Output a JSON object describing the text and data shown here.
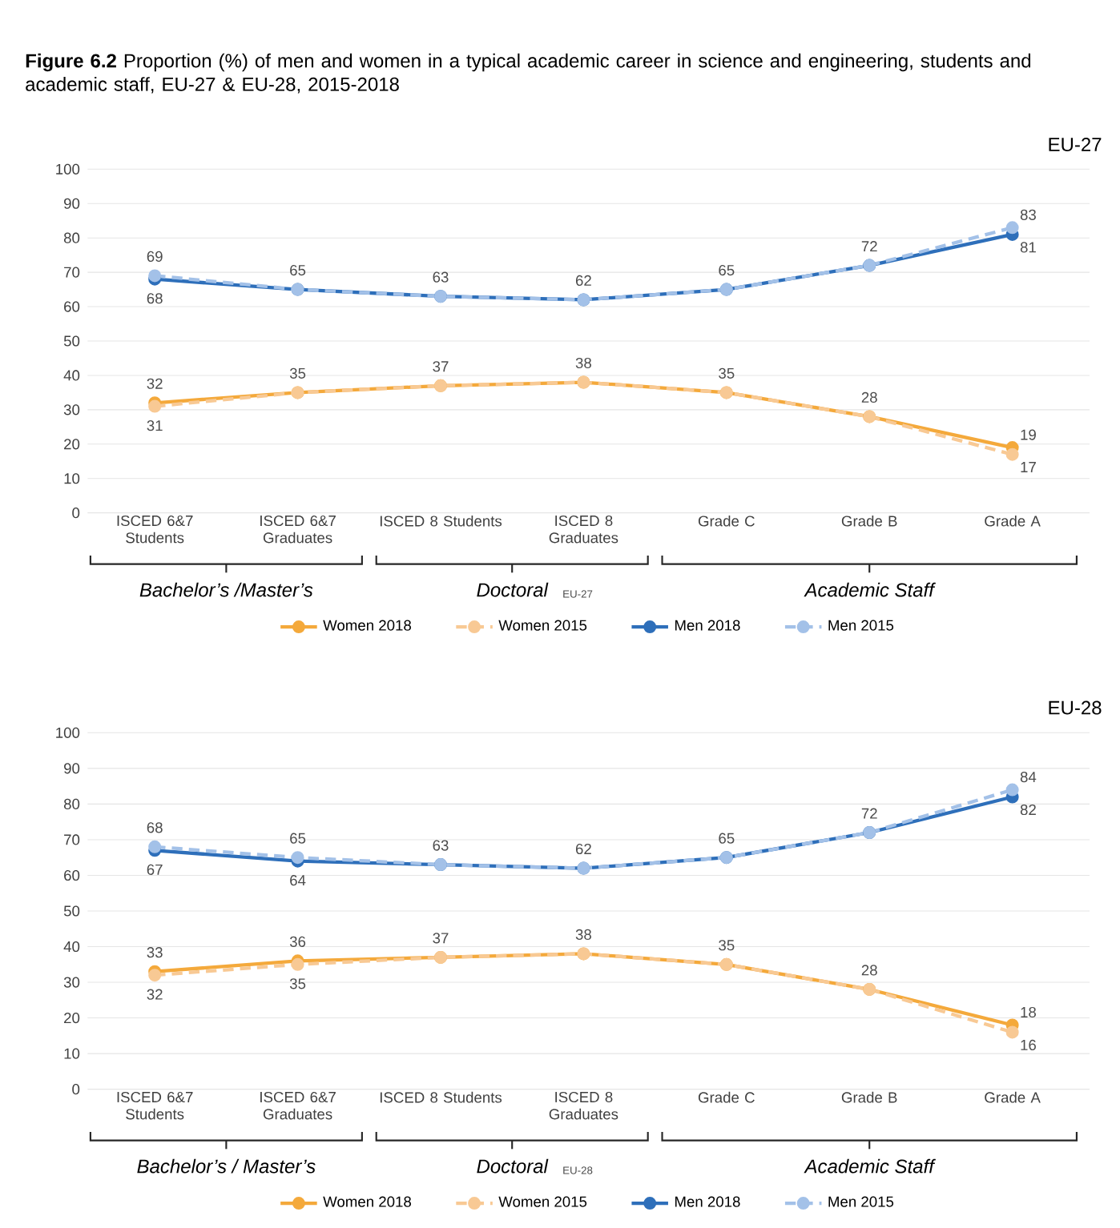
{
  "chart_data": [
    {
      "type": "line",
      "title": "**Figure 6.2** Proportion (%) of men and women in a typical academic career in science and engineering, students and academic staff, EU-27 & EU-28, 2015-2018",
      "subtitle": "EU-27",
      "categories": [
        "ISCED 6&7 Students",
        "ISCED 6&7 Graduates",
        "ISCED 8 Students",
        "ISCED 8 Graduates",
        "Grade C",
        "Grade B",
        "Grade A"
      ],
      "series": [
        {
          "name": "Women 2018",
          "color": "#f4a93b",
          "line_style": "solid",
          "values": [
            32,
            35,
            37,
            38,
            35,
            28,
            19
          ],
          "value_labels": [
            "32",
            "35",
            "37",
            "38",
            "35",
            "28",
            "19"
          ]
        },
        {
          "name": "Women 2015",
          "color": "#f8c994",
          "line_style": "dashed",
          "values": [
            31,
            35,
            37,
            38,
            35,
            28,
            17
          ],
          "value_labels": [
            "31",
            null,
            null,
            null,
            null,
            null,
            "17"
          ]
        },
        {
          "name": "Men 2018",
          "color": "#2e6fba",
          "line_style": "solid",
          "values": [
            68,
            65,
            63,
            62,
            65,
            72,
            81
          ],
          "value_labels": [
            "68",
            "65",
            "63",
            "62",
            "65",
            "72",
            "81"
          ]
        },
        {
          "name": "Men 2015",
          "color": "#a3c1e8",
          "line_style": "dashed",
          "values": [
            69,
            65,
            63,
            62,
            65,
            72,
            83
          ],
          "value_labels": [
            "69",
            null,
            null,
            null,
            null,
            null,
            "83"
          ]
        }
      ],
      "ylim": [
        0,
        100
      ],
      "yticks": [
        0,
        10,
        20,
        30,
        40,
        50,
        60,
        70,
        80,
        90,
        100
      ],
      "grid": "y",
      "legend": "bottom",
      "marker": "circle",
      "annotations": [
        "Bachelor’s /Master’s",
        "Doctoral",
        "EU-27",
        "Academic Staff"
      ]
    },
    {
      "type": "line",
      "subtitle": "EU-28",
      "categories": [
        "ISCED 6&7 Students",
        "ISCED 6&7 Graduates",
        "ISCED 8 Students",
        "ISCED 8 Graduates",
        "Grade C",
        "Grade B",
        "Grade A"
      ],
      "series": [
        {
          "name": "Women 2018",
          "color": "#f4a93b",
          "line_style": "solid",
          "values": [
            33,
            36,
            37,
            38,
            35,
            28,
            18
          ],
          "value_labels": [
            "33",
            "36",
            "37",
            "38",
            "35",
            "28",
            "18"
          ]
        },
        {
          "name": "Women 2015",
          "color": "#f8c994",
          "line_style": "dashed",
          "values": [
            32,
            35,
            37,
            38,
            35,
            28,
            16
          ],
          "value_labels": [
            "32",
            "35",
            null,
            null,
            null,
            null,
            "16"
          ]
        },
        {
          "name": "Men 2018",
          "color": "#2e6fba",
          "line_style": "solid",
          "values": [
            67,
            64,
            63,
            62,
            65,
            72,
            82
          ],
          "value_labels": [
            "67",
            "64",
            "63",
            "62",
            "65",
            "72",
            "82"
          ]
        },
        {
          "name": "Men 2015",
          "color": "#a3c1e8",
          "line_style": "dashed",
          "values": [
            68,
            65,
            63,
            62,
            65,
            72,
            84
          ],
          "value_labels": [
            "68",
            "65",
            null,
            null,
            null,
            null,
            "84"
          ]
        }
      ],
      "ylim": [
        0,
        100
      ],
      "yticks": [
        0,
        10,
        20,
        30,
        40,
        50,
        60,
        70,
        80,
        90,
        100
      ],
      "grid": "y",
      "legend": "bottom",
      "marker": "circle",
      "annotations": [
        "Bachelor’s / Master’s",
        "Doctoral",
        "EU-28",
        "Academic Staff"
      ]
    }
  ]
}
